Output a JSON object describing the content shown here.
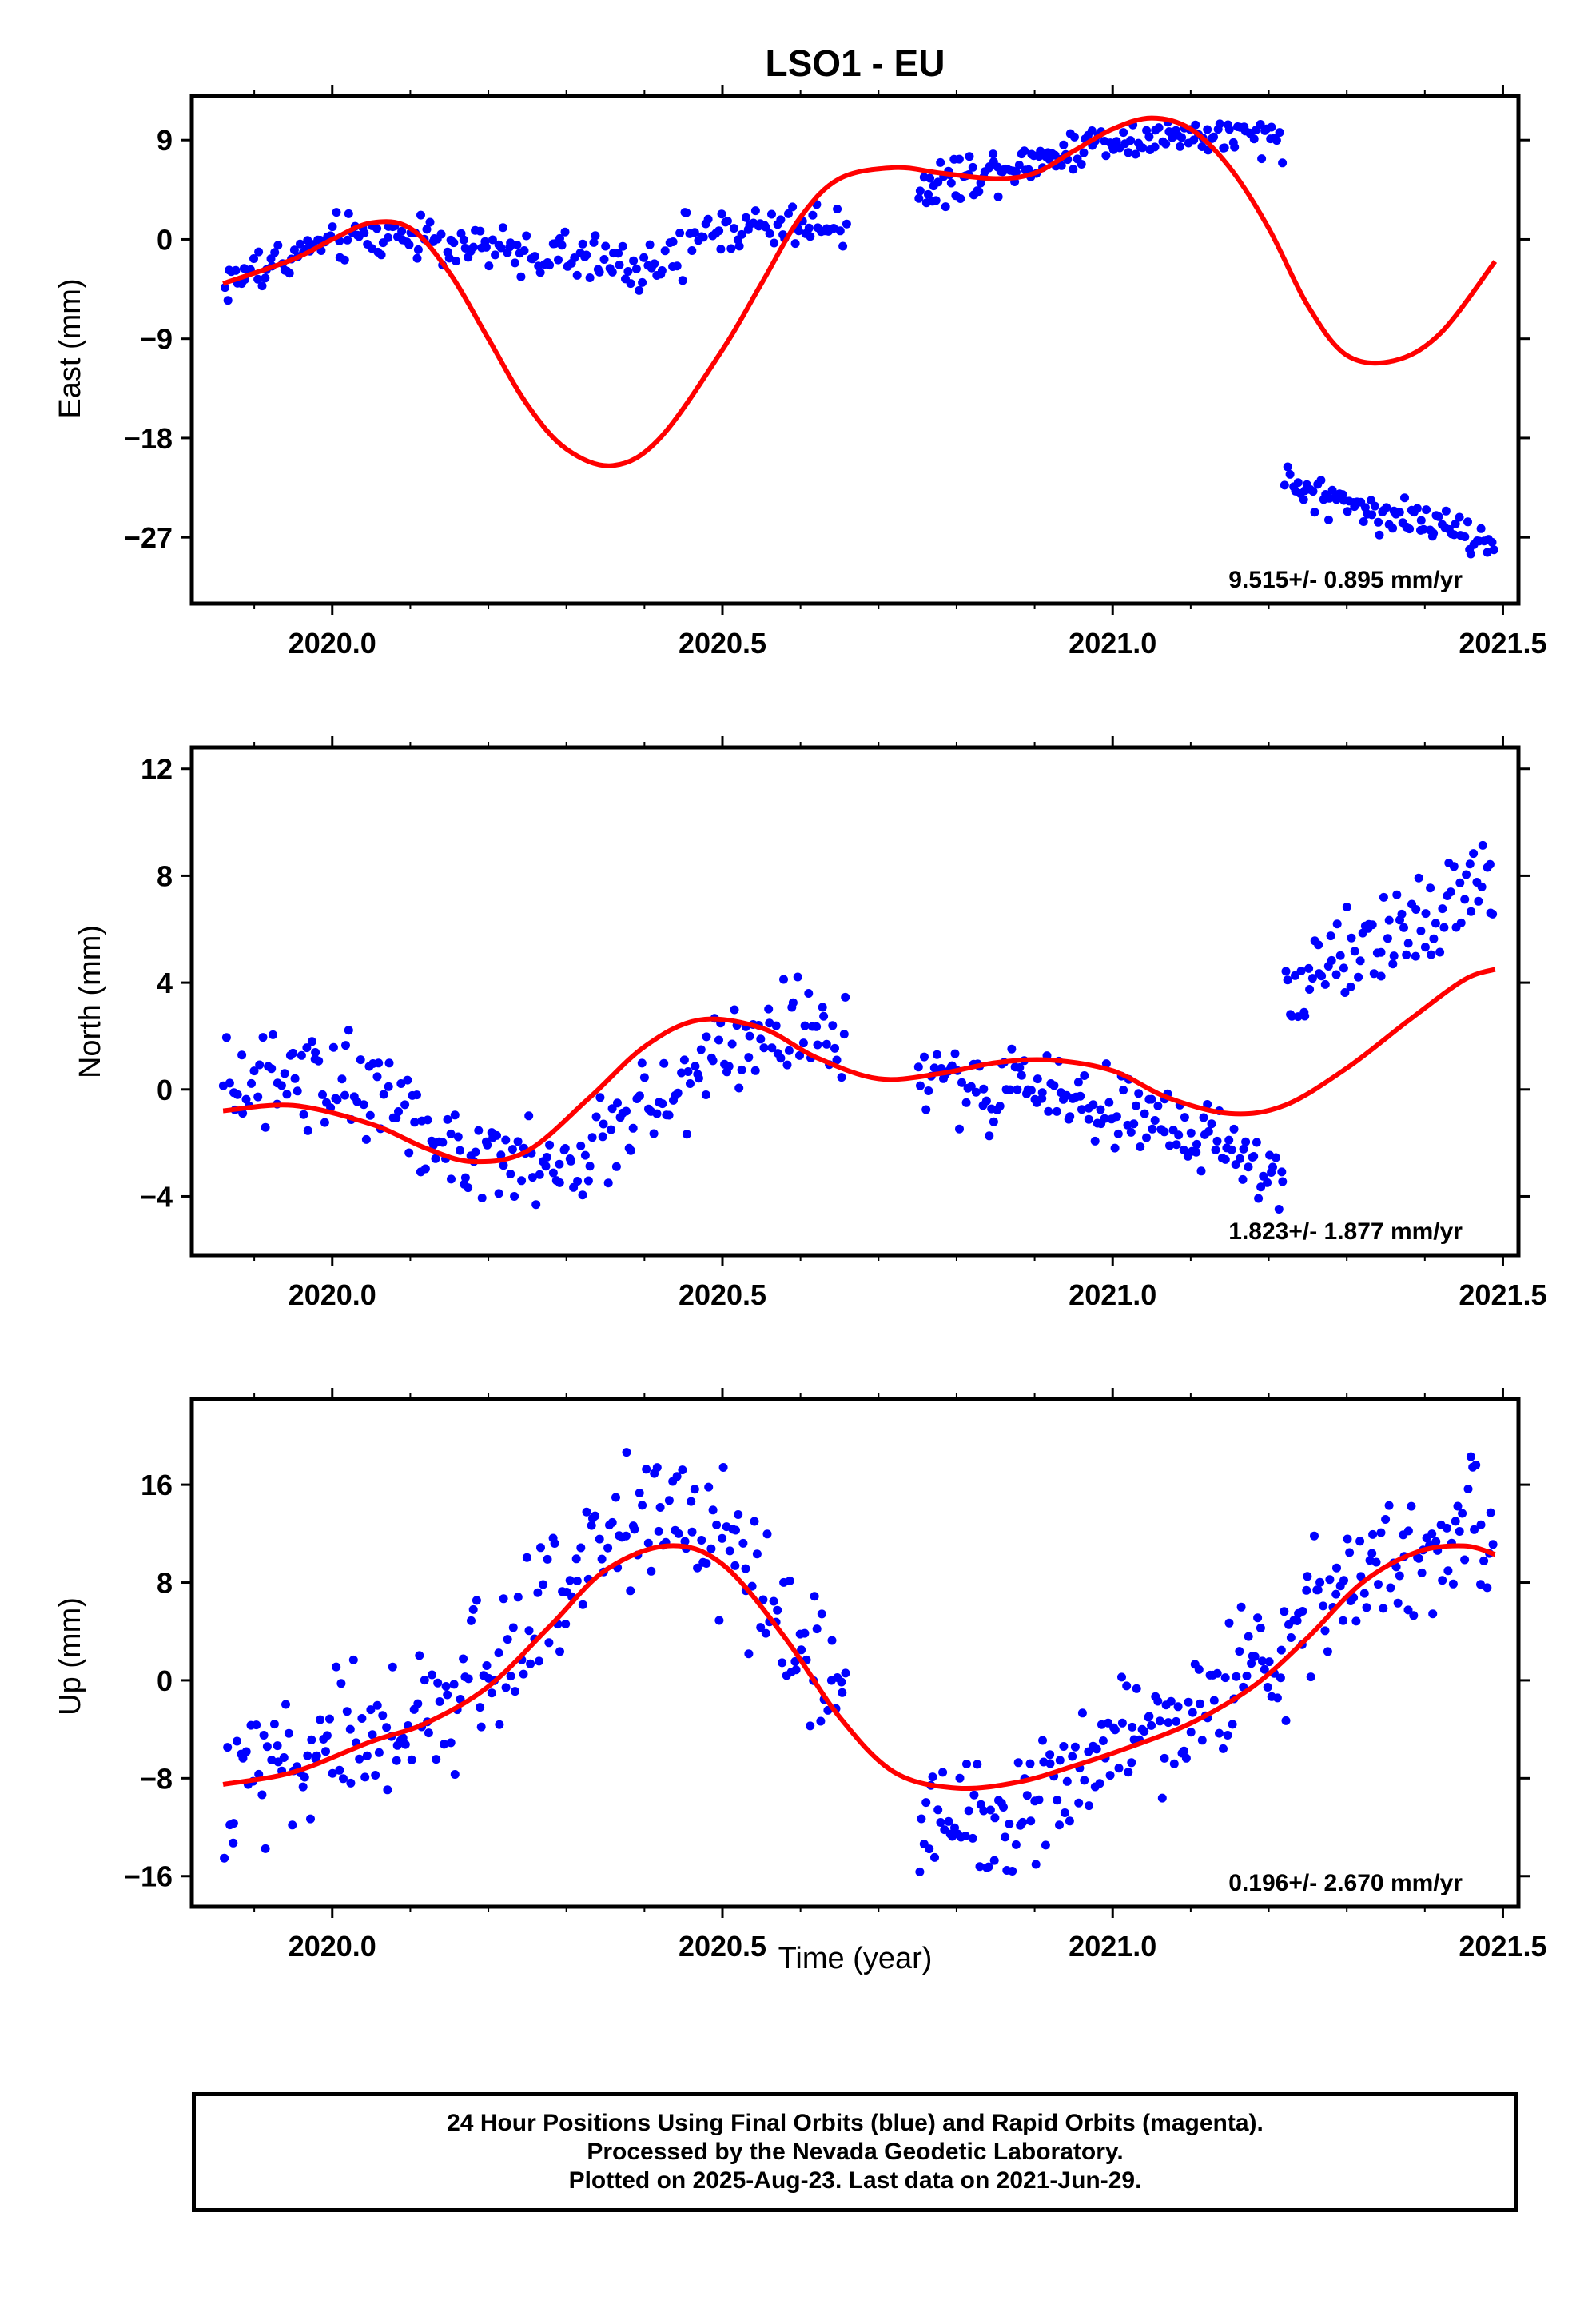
{
  "figure": {
    "title": "LSO1 - EU",
    "xlabel": "Time (year)"
  },
  "footer": {
    "line1": "24 Hour Positions Using Final Orbits (blue) and Rapid Orbits (magenta).",
    "line2": "Processed by the Nevada Geodetic Laboratory.",
    "line3": "Plotted on 2025-Aug-23. Last data on 2021-Jun-29."
  },
  "colors": {
    "points": "#0000ff",
    "fit": "#ff0000",
    "axes": "#000000"
  },
  "chart_data": [
    {
      "type": "scatter",
      "name": "east",
      "ylabel": "East (mm)",
      "rate_text": "9.515+/- 0.895 mm/yr",
      "xlim": [
        2019.82,
        2021.52
      ],
      "ylim": [
        -33,
        13
      ],
      "xticks": [
        2020.0,
        2020.5,
        2021.0,
        2021.5
      ],
      "xtick_labels": [
        "2020.0",
        "2020.5",
        "2021.0",
        "2021.5"
      ],
      "yticks": [
        9,
        0,
        -9,
        -18,
        -27
      ],
      "ytick_labels": [
        "9",
        "0",
        "−9",
        "−18",
        "−27"
      ],
      "series": [
        {
          "name": "",
          "kind": "points",
          "segments": [
            {
              "x_start": 2019.86,
              "x_end": 2020.45,
              "trend": [
                [
                  2019.86,
                  -4
                ],
                [
                  2019.95,
                  -1.5
                ],
                [
                  2020.0,
                  0
                ],
                [
                  2020.1,
                  0.5
                ],
                [
                  2020.2,
                  -1
                ],
                [
                  2020.3,
                  -1.5
                ],
                [
                  2020.4,
                  -2.5
                ],
                [
                  2020.45,
                  -2
                ]
              ],
              "spread": 1.6,
              "count": 170
            },
            {
              "x_start": 2020.45,
              "x_end": 2020.66,
              "trend": [
                [
                  2020.45,
                  0.5
                ],
                [
                  2020.55,
                  1.2
                ],
                [
                  2020.66,
                  1.5
                ]
              ],
              "spread": 1.6,
              "count": 60
            },
            {
              "x_start": 2020.75,
              "x_end": 2020.95,
              "trend": [
                [
                  2020.75,
                  4.5
                ],
                [
                  2020.85,
                  6.5
                ],
                [
                  2020.95,
                  8
                ]
              ],
              "spread": 1.5,
              "count": 70
            },
            {
              "x_start": 2020.95,
              "x_end": 2021.22,
              "trend": [
                [
                  2020.95,
                  8.5
                ],
                [
                  2021.05,
                  9.5
                ],
                [
                  2021.22,
                  9
                ]
              ],
              "spread": 1.3,
              "count": 80
            },
            {
              "x_start": 2021.22,
              "x_end": 2021.49,
              "trend": [
                [
                  2021.22,
                  -22
                ],
                [
                  2021.3,
                  -24
                ],
                [
                  2021.4,
                  -25.5
                ],
                [
                  2021.49,
                  -28
                ]
              ],
              "spread": 1.3,
              "count": 85
            }
          ]
        },
        {
          "name": "",
          "kind": "fit",
          "x": [
            2019.86,
            2019.95,
            2020.0,
            2020.05,
            2020.1,
            2020.15,
            2020.2,
            2020.25,
            2020.3,
            2020.36,
            2020.42,
            2020.5,
            2020.55,
            2020.6,
            2020.65,
            2020.72,
            2020.78,
            2020.85,
            2020.9,
            2020.95,
            2021.0,
            2021.05,
            2021.1,
            2021.15,
            2021.2,
            2021.25,
            2021.3,
            2021.36,
            2021.42,
            2021.49
          ],
          "y": [
            -4,
            -1.8,
            0,
            1.5,
            1,
            -3,
            -9,
            -15,
            -19,
            -20.5,
            -18,
            -10,
            -4,
            2,
            5.5,
            6.5,
            6,
            5.5,
            6,
            8,
            10,
            11,
            10,
            6.5,
            1,
            -6,
            -10.5,
            -11,
            -8.5,
            -2
          ]
        }
      ]
    },
    {
      "type": "scatter",
      "name": "north",
      "ylabel": "North (mm)",
      "rate_text": "1.823+/- 1.877 mm/yr",
      "xlim": [
        2019.82,
        2021.52
      ],
      "ylim": [
        -6.2,
        12.8
      ],
      "xticks": [
        2020.0,
        2020.5,
        2021.0,
        2021.5
      ],
      "xtick_labels": [
        "2020.0",
        "2020.5",
        "2021.0",
        "2021.5"
      ],
      "yticks": [
        12,
        8,
        4,
        0,
        -4
      ],
      "ytick_labels": [
        "12",
        "8",
        "4",
        "0",
        "−4"
      ],
      "series": [
        {
          "name": "",
          "kind": "points",
          "segments": [
            {
              "x_start": 2019.86,
              "x_end": 2020.66,
              "trend": [
                [
                  2019.86,
                  0.5
                ],
                [
                  2020.05,
                  0
                ],
                [
                  2020.15,
                  -2
                ],
                [
                  2020.3,
                  -3
                ],
                [
                  2020.4,
                  -1
                ],
                [
                  2020.5,
                  1.5
                ],
                [
                  2020.6,
                  2.5
                ],
                [
                  2020.66,
                  1.5
                ]
              ],
              "spread": 1.3,
              "count": 230
            },
            {
              "x_start": 2020.75,
              "x_end": 2021.22,
              "trend": [
                [
                  2020.75,
                  0.5
                ],
                [
                  2020.9,
                  0
                ],
                [
                  2021.0,
                  -0.5
                ],
                [
                  2021.1,
                  -1.5
                ],
                [
                  2021.22,
                  -3.5
                ]
              ],
              "spread": 1.1,
              "count": 150
            },
            {
              "x_start": 2021.22,
              "x_end": 2021.49,
              "trend": [
                [
                  2021.22,
                  3.5
                ],
                [
                  2021.3,
                  5
                ],
                [
                  2021.4,
                  6
                ],
                [
                  2021.49,
                  8
                ]
              ],
              "spread": 1.3,
              "count": 85
            }
          ]
        },
        {
          "name": "",
          "kind": "fit",
          "x": [
            2019.86,
            2019.95,
            2020.05,
            2020.12,
            2020.18,
            2020.25,
            2020.33,
            2020.4,
            2020.47,
            2020.55,
            2020.62,
            2020.7,
            2020.78,
            2020.85,
            2020.92,
            2021.0,
            2021.07,
            2021.15,
            2021.22,
            2021.3,
            2021.38,
            2021.45,
            2021.49
          ],
          "y": [
            -0.8,
            -0.6,
            -1.3,
            -2.2,
            -2.7,
            -2.3,
            -0.3,
            1.6,
            2.6,
            2.3,
            1.2,
            0.4,
            0.6,
            1.0,
            1.1,
            0.7,
            -0.3,
            -0.9,
            -0.6,
            0.8,
            2.6,
            4.1,
            4.5
          ]
        }
      ]
    },
    {
      "type": "scatter",
      "name": "up",
      "ylabel": "Up (mm)",
      "rate_text": "0.196+/- 2.670 mm/yr",
      "xlim": [
        2019.82,
        2021.52
      ],
      "ylim": [
        -18.5,
        23
      ],
      "xticks": [
        2020.0,
        2020.5,
        2021.0,
        2021.5
      ],
      "xtick_labels": [
        "2020.0",
        "2020.5",
        "2021.0",
        "2021.5"
      ],
      "yticks": [
        16,
        8,
        0,
        -8,
        -16
      ],
      "ytick_labels": [
        "16",
        "8",
        "0",
        "−8",
        "−16"
      ],
      "series": [
        {
          "name": "",
          "kind": "points",
          "segments": [
            {
              "x_start": 2019.86,
              "x_end": 2020.66,
              "trend": [
                [
                  2019.86,
                  -8
                ],
                [
                  2020.0,
                  -5
                ],
                [
                  2020.1,
                  -4
                ],
                [
                  2020.2,
                  1
                ],
                [
                  2020.3,
                  8
                ],
                [
                  2020.4,
                  13
                ],
                [
                  2020.5,
                  11
                ],
                [
                  2020.6,
                  3
                ],
                [
                  2020.66,
                  -2
                ]
              ],
              "spread": 4.0,
              "count": 240
            },
            {
              "x_start": 2020.75,
              "x_end": 2021.49,
              "trend": [
                [
                  2020.75,
                  -11
                ],
                [
                  2020.85,
                  -11
                ],
                [
                  2021.0,
                  -6
                ],
                [
                  2021.1,
                  -3
                ],
                [
                  2021.2,
                  2
                ],
                [
                  2021.3,
                  7
                ],
                [
                  2021.4,
                  11
                ],
                [
                  2021.49,
                  12
                ]
              ],
              "spread": 3.8,
              "count": 240
            }
          ]
        },
        {
          "name": "",
          "kind": "fit",
          "x": [
            2019.86,
            2019.95,
            2020.05,
            2020.12,
            2020.2,
            2020.28,
            2020.35,
            2020.43,
            2020.5,
            2020.58,
            2020.65,
            2020.72,
            2020.8,
            2020.88,
            2020.95,
            2021.02,
            2021.1,
            2021.18,
            2021.25,
            2021.32,
            2021.39,
            2021.45,
            2021.49
          ],
          "y": [
            -8.5,
            -7.5,
            -5,
            -3.5,
            -0.5,
            4.5,
            9,
            11,
            9.5,
            3.5,
            -3,
            -7.5,
            -8.8,
            -8.3,
            -7,
            -5.5,
            -3.5,
            -0.5,
            3.5,
            8,
            10.5,
            11,
            10.3
          ]
        }
      ]
    }
  ]
}
